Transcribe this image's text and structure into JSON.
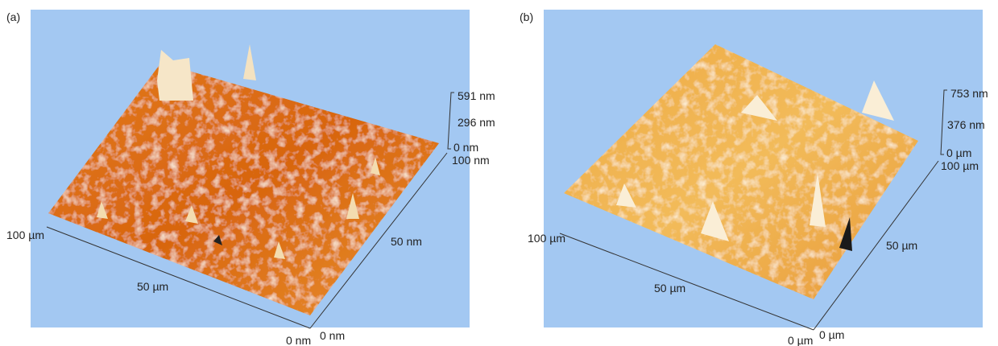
{
  "panels": [
    {
      "label": "(a)",
      "z_ticks": [
        "591 nm",
        "296 nm",
        "0 nm"
      ],
      "right_axis_ticks": [
        "100 nm",
        "50 nm",
        "0 nm"
      ],
      "left_axis_ticks": [
        "100 µm",
        "50 µm",
        "0 nm"
      ]
    },
    {
      "label": "(b)",
      "z_ticks": [
        "753 nm",
        "376 nm",
        "0 µm"
      ],
      "right_axis_ticks": [
        "100 µm",
        "50 µm",
        "0 µm"
      ],
      "left_axis_ticks": [
        "100 µm",
        "50 µm",
        "0 µm"
      ]
    }
  ]
}
